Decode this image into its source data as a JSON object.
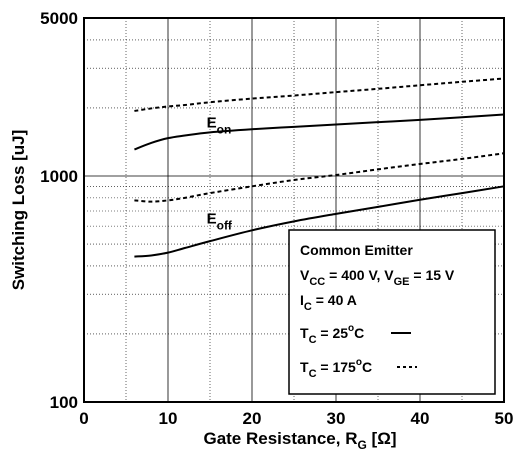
{
  "chart_data": {
    "type": "line",
    "title": "",
    "xlabel": {
      "main": "Gate Resistance, R",
      "sub": "G",
      "unit": " [Ω]"
    },
    "ylabel": "Switching Loss [uJ]",
    "xlim": [
      0,
      50
    ],
    "ylim": [
      100,
      5000
    ],
    "yscale": "log",
    "grid": true,
    "x_ticks": [
      "0",
      "10",
      "20",
      "30",
      "40",
      "50"
    ],
    "y_ticks": [
      "100",
      "1000",
      "5000"
    ],
    "x_tick_values": [
      0,
      10,
      20,
      30,
      40,
      50
    ],
    "y_tick_values": [
      100,
      1000,
      5000
    ],
    "series": [
      {
        "name": "Eon",
        "condition": "25",
        "style": "solid",
        "x": [
          6,
          8,
          10,
          12,
          15,
          20,
          25,
          30,
          35,
          40,
          45,
          50
        ],
        "y": [
          1310,
          1400,
          1470,
          1510,
          1560,
          1610,
          1650,
          1690,
          1730,
          1770,
          1820,
          1870
        ]
      },
      {
        "name": "Eon",
        "condition": "175",
        "style": "dashed",
        "x": [
          6,
          8,
          10,
          12,
          15,
          20,
          25,
          30,
          35,
          40,
          45,
          50
        ],
        "y": [
          1940,
          1990,
          2030,
          2060,
          2120,
          2200,
          2270,
          2350,
          2430,
          2520,
          2610,
          2700
        ]
      },
      {
        "name": "Eoff",
        "condition": "25",
        "style": "solid",
        "x": [
          6,
          8,
          10,
          12,
          15,
          20,
          25,
          30,
          35,
          40,
          45,
          50
        ],
        "y": [
          440,
          445,
          458,
          480,
          515,
          575,
          630,
          680,
          730,
          785,
          840,
          900
        ]
      },
      {
        "name": "Eoff",
        "condition": "175",
        "style": "dashed",
        "x": [
          6,
          8,
          10,
          12,
          15,
          20,
          25,
          30,
          35,
          40,
          45,
          50
        ],
        "y": [
          780,
          770,
          780,
          800,
          840,
          900,
          960,
          1010,
          1070,
          1130,
          1190,
          1260
        ]
      }
    ],
    "curve_labels": [
      {
        "main": "E",
        "sub": "on",
        "x": 14,
        "y": 1640
      },
      {
        "main": "E",
        "sub": "off",
        "x": 14,
        "y": 615
      }
    ],
    "legend": {
      "position": "bottom-right",
      "title": "Common Emitter",
      "lines": [
        {
          "parts": [
            {
              "t": "V",
              "s": "normal"
            },
            {
              "t": "CC",
              "s": "sub"
            },
            {
              "t": " = 400 V, V",
              "s": "normal"
            },
            {
              "t": "GE",
              "s": "sub"
            },
            {
              "t": " = 15 V",
              "s": "normal"
            }
          ]
        },
        {
          "parts": [
            {
              "t": "I",
              "s": "normal"
            },
            {
              "t": "C",
              "s": "sub"
            },
            {
              "t": " = 40 A",
              "s": "normal"
            }
          ]
        },
        {
          "parts": [
            {
              "t": "T",
              "s": "normal"
            },
            {
              "t": "C",
              "s": "sub"
            },
            {
              "t": " = 25",
              "s": "normal"
            },
            {
              "t": "o",
              "s": "sup"
            },
            {
              "t": "C",
              "s": "normal"
            }
          ],
          "sample": "solid"
        },
        {
          "parts": [
            {
              "t": "T",
              "s": "normal"
            },
            {
              "t": "C",
              "s": "sub"
            },
            {
              "t": " = 175",
              "s": "normal"
            },
            {
              "t": "o",
              "s": "sup"
            },
            {
              "t": "C",
              "s": "normal"
            }
          ],
          "sample": "dashed"
        }
      ]
    },
    "colors": {
      "line": "#000000",
      "grid": "#000000",
      "background": "#ffffff"
    }
  }
}
